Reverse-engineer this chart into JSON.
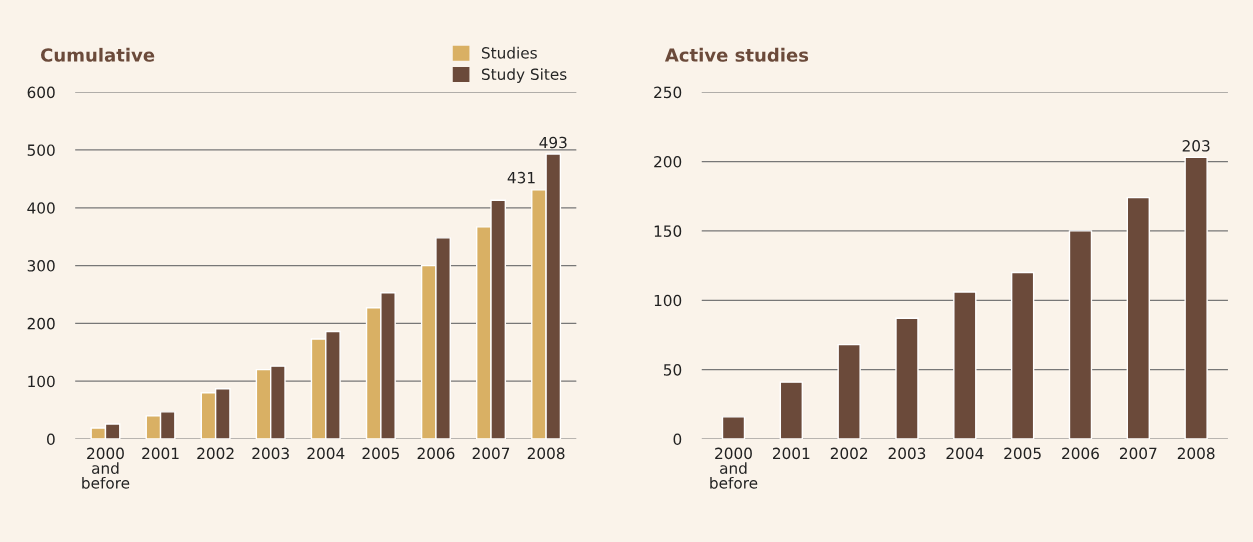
{
  "chart_data": [
    {
      "type": "bar",
      "title": "Cumulative",
      "categories": [
        "2000\nand\nbefore",
        "2001",
        "2002",
        "2003",
        "2004",
        "2005",
        "2006",
        "2007",
        "2008"
      ],
      "series": [
        {
          "name": "Studies",
          "color": "#d9b064",
          "values": [
            19,
            40,
            80,
            120,
            173,
            227,
            300,
            367,
            431
          ],
          "value_labels": [
            null,
            null,
            null,
            null,
            null,
            null,
            null,
            null,
            "431"
          ]
        },
        {
          "name": "Study Sites",
          "color": "#6b4a3a",
          "values": [
            26,
            47,
            87,
            126,
            186,
            253,
            348,
            413,
            493
          ],
          "value_labels": [
            null,
            null,
            null,
            null,
            null,
            null,
            null,
            null,
            "493"
          ]
        }
      ],
      "ylim": [
        0,
        600
      ],
      "yticks": [
        0,
        100,
        200,
        300,
        400,
        500,
        600
      ],
      "grid": "y",
      "legend": "top right"
    },
    {
      "type": "bar",
      "title": "Active studies",
      "categories": [
        "2000\nand\nbefore",
        "2001",
        "2002",
        "2003",
        "2004",
        "2005",
        "2006",
        "2007",
        "2008"
      ],
      "series": [
        {
          "color": "#6b4a3a",
          "values": [
            16,
            41,
            68,
            87,
            106,
            120,
            150,
            174,
            203
          ],
          "value_labels": [
            null,
            null,
            null,
            null,
            null,
            null,
            null,
            null,
            "203"
          ]
        }
      ],
      "ylim": [
        0,
        250
      ],
      "yticks": [
        0,
        50,
        100,
        150,
        200,
        250
      ],
      "grid": "y"
    }
  ]
}
